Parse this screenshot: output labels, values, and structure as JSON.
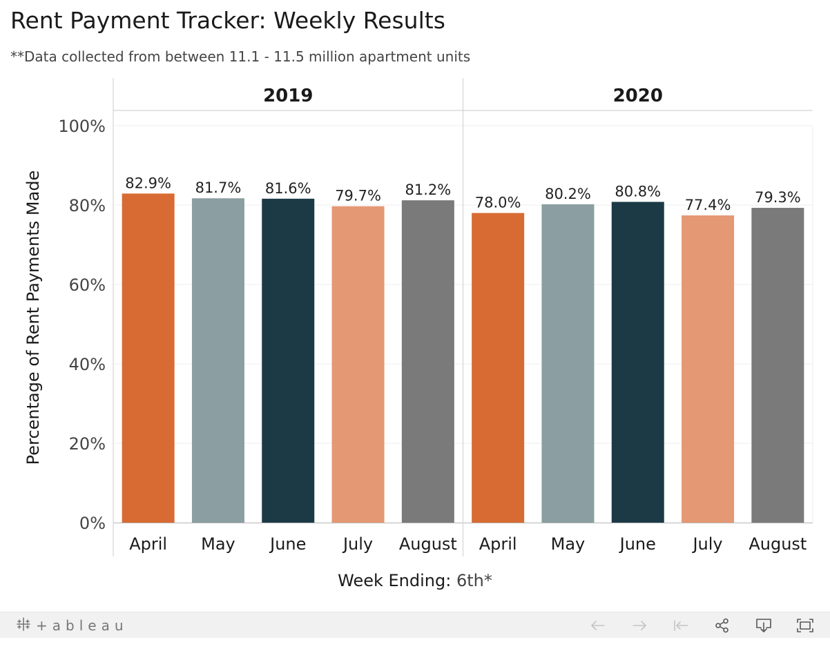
{
  "title": "Rent Payment Tracker: Weekly Results",
  "subtitle": "**Data collected from between 11.1 - 11.5 million apartment units",
  "x_axis_title": {
    "label": "Week Ending:",
    "value": "6th*"
  },
  "footer": {
    "logo_text": "+ableau"
  },
  "colors": {
    "April": "#d86b33",
    "May": "#8b9ea2",
    "June": "#1c3a46",
    "July": "#e59874",
    "August": "#7a7a7a"
  },
  "chart_data": {
    "type": "bar",
    "ylabel": "Percentage of Rent Payments Made",
    "xlabel": "Week Ending: 6th*",
    "ylim": [
      0,
      100
    ],
    "y_ticks": [
      "0%",
      "20%",
      "40%",
      "60%",
      "80%",
      "100%"
    ],
    "grid": true,
    "categories": [
      "April",
      "May",
      "June",
      "July",
      "August"
    ],
    "panels": [
      {
        "name": "2019",
        "values": [
          82.9,
          81.7,
          81.6,
          79.7,
          81.2
        ],
        "labels": [
          "82.9%",
          "81.7%",
          "81.6%",
          "79.7%",
          "81.2%"
        ]
      },
      {
        "name": "2020",
        "values": [
          78.0,
          80.2,
          80.8,
          77.4,
          79.3
        ],
        "labels": [
          "78.0%",
          "80.2%",
          "80.8%",
          "77.4%",
          "79.3%"
        ]
      }
    ]
  }
}
